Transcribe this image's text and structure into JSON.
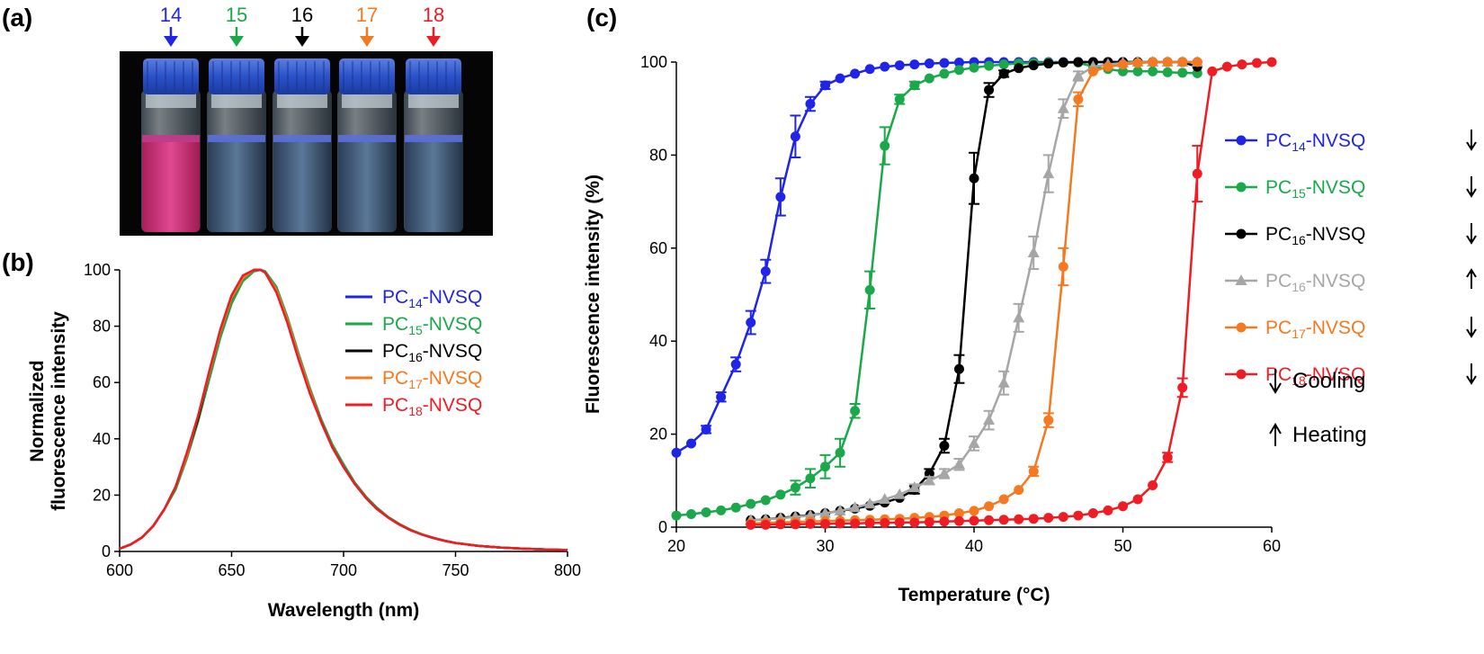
{
  "panels": {
    "a": {
      "label": "(a)",
      "vial_labels": [
        {
          "text": "14",
          "color": "#1f24e6"
        },
        {
          "text": "15",
          "color": "#1aa84a"
        },
        {
          "text": "16",
          "color": "#000000"
        },
        {
          "text": "17",
          "color": "#f47920"
        },
        {
          "text": "18",
          "color": "#ee1c24"
        }
      ]
    },
    "b": {
      "label": "(b)"
    },
    "c": {
      "label": "(c)",
      "notes": [
        {
          "arrow": "down",
          "text": "Cooling"
        },
        {
          "arrow": "up",
          "text": "Heating"
        }
      ]
    }
  },
  "chart_data": [
    {
      "id": "spectra",
      "type": "line",
      "xlabel": "Wavelength (nm)",
      "ylabel": [
        "Normalized",
        "fluorescence intensity"
      ],
      "xlim": [
        600,
        800
      ],
      "ylim": [
        0,
        100
      ],
      "xticks": [
        600,
        650,
        700,
        750,
        800
      ],
      "yticks": [
        0,
        20,
        40,
        60,
        80,
        100
      ],
      "grid": false,
      "legend_position": "right",
      "x": [
        600,
        605,
        610,
        615,
        620,
        625,
        630,
        635,
        640,
        645,
        650,
        655,
        660,
        663,
        665,
        670,
        675,
        680,
        685,
        690,
        695,
        700,
        705,
        710,
        715,
        720,
        725,
        730,
        735,
        740,
        745,
        750,
        760,
        770,
        780,
        790,
        800
      ],
      "series": [
        {
          "base": "PC",
          "sub": "14",
          "suffix": "-NVSQ",
          "color": "#1f24e6",
          "values": [
            1,
            2.5,
            5,
            9,
            15,
            23,
            34,
            47,
            62,
            77,
            89,
            97,
            100,
            100,
            99,
            93,
            82,
            69,
            57,
            46,
            37,
            30,
            24,
            19,
            15,
            12,
            9.5,
            7.5,
            6,
            4.8,
            3.8,
            3,
            2,
            1.4,
            1,
            0.7,
            0.5
          ]
        },
        {
          "base": "PC",
          "sub": "15",
          "suffix": "-NVSQ",
          "color": "#1aa84a",
          "values": [
            1,
            2.5,
            5,
            9,
            15,
            22,
            33,
            46,
            61,
            76,
            88,
            96,
            99.5,
            100,
            99.5,
            94,
            83,
            70,
            58,
            47,
            38,
            31,
            24.5,
            19.5,
            15.5,
            12.2,
            9.7,
            7.7,
            6.1,
            4.9,
            3.9,
            3,
            2,
            1.4,
            1,
            0.7,
            0.5
          ]
        },
        {
          "base": "PC",
          "sub": "16",
          "suffix": "-NVSQ",
          "color": "#000000",
          "values": [
            1,
            2.5,
            5,
            9,
            15,
            23,
            34,
            47,
            63,
            78,
            90,
            97,
            100,
            100,
            99,
            93,
            81,
            68,
            57,
            46,
            37,
            30,
            24,
            19,
            15,
            12,
            9.5,
            7.5,
            6,
            4.8,
            3.8,
            3,
            2,
            1.4,
            1,
            0.7,
            0.5
          ]
        },
        {
          "base": "PC",
          "sub": "17",
          "suffix": "-NVSQ",
          "color": "#f47920",
          "values": [
            1,
            2.5,
            5,
            9,
            15,
            23,
            34,
            48,
            63,
            78,
            90,
            97,
            100,
            100,
            99,
            93,
            82,
            69,
            57,
            46,
            37,
            30,
            24,
            19,
            15,
            12,
            9.5,
            7.5,
            6,
            4.8,
            3.8,
            3,
            2,
            1.4,
            1,
            0.7,
            0.5
          ]
        },
        {
          "base": "PC",
          "sub": "18",
          "suffix": "-NVSQ",
          "color": "#ee1c24",
          "values": [
            1,
            2.5,
            5,
            9,
            15,
            23,
            35,
            48,
            64,
            79,
            91,
            98,
            100,
            100,
            99,
            92,
            81,
            68,
            56,
            46,
            37,
            30,
            24,
            19,
            15,
            12,
            9.5,
            7.5,
            6,
            4.8,
            3.8,
            3,
            2,
            1.4,
            1,
            0.7,
            0.5
          ]
        }
      ]
    },
    {
      "id": "melting",
      "type": "scatter",
      "xlabel": "Temperature (°C)",
      "ylabel": "Fluorescence intensity (%)",
      "xlim": [
        20,
        60
      ],
      "ylim": [
        0,
        100
      ],
      "xticks": [
        20,
        30,
        40,
        50,
        60
      ],
      "yticks": [
        0,
        20,
        40,
        60,
        80,
        100
      ],
      "grid": false,
      "legend_position": "right",
      "series": [
        {
          "base": "PC",
          "sub": "14",
          "suffix": "-NVSQ",
          "color": "#1f24e6",
          "marker": "circle",
          "arrow": "down",
          "x": [
            20,
            21,
            22,
            23,
            24,
            25,
            26,
            27,
            28,
            29,
            30,
            31,
            32,
            33,
            34,
            35,
            36,
            37,
            38,
            39,
            40,
            41,
            42,
            43,
            44,
            45,
            46,
            47,
            48,
            49,
            50,
            51,
            52,
            53,
            54,
            55
          ],
          "y": [
            16,
            18,
            21,
            28,
            35,
            44,
            55,
            71,
            84,
            91,
            95,
            96.5,
            97.5,
            98.5,
            99,
            99.3,
            99.5,
            99.7,
            99.8,
            99.9,
            100,
            100,
            100,
            100,
            100,
            100,
            100,
            100,
            100,
            100,
            100,
            100,
            100,
            100,
            100,
            100
          ],
          "err": [
            0.5,
            0.5,
            0.8,
            1,
            1.5,
            2.5,
            2.5,
            4,
            4.5,
            1.5,
            0.8,
            0.5,
            0.4,
            0.3,
            0.3,
            0.2,
            0.2,
            0.2,
            0.1,
            0.1,
            0.1,
            0,
            0,
            0,
            0,
            0,
            0,
            0,
            0,
            0,
            0,
            0,
            0,
            0,
            0,
            0
          ]
        },
        {
          "base": "PC",
          "sub": "15",
          "suffix": "-NVSQ",
          "color": "#1aa84a",
          "marker": "circle",
          "arrow": "down",
          "x": [
            20,
            21,
            22,
            23,
            24,
            25,
            26,
            27,
            28,
            29,
            30,
            31,
            32,
            33,
            34,
            35,
            36,
            37,
            38,
            39,
            40,
            41,
            42,
            43,
            44,
            45,
            46,
            47,
            48,
            49,
            50,
            51,
            52,
            53,
            54,
            55
          ],
          "y": [
            2.5,
            2.8,
            3.2,
            3.6,
            4.2,
            5,
            5.8,
            7,
            8.5,
            10.5,
            13,
            16,
            25,
            51,
            82,
            92,
            95,
            96.5,
            97.5,
            98.3,
            98.8,
            99.2,
            99.5,
            99.7,
            99.8,
            99.9,
            99.9,
            99.9,
            99,
            98.5,
            98,
            98,
            98,
            97.8,
            97.7,
            97.6
          ],
          "err": [
            0.3,
            0.3,
            0.3,
            0.4,
            0.4,
            0.5,
            0.5,
            0.6,
            1.5,
            2,
            2.5,
            3,
            1.5,
            4,
            4,
            1,
            0.8,
            0.5,
            0.4,
            0.3,
            0.3,
            0.2,
            0.2,
            0.1,
            0.1,
            0.1,
            0.1,
            0.1,
            0.5,
            0.5,
            0.5,
            0.5,
            0.5,
            0.5,
            0.5,
            0.5
          ]
        },
        {
          "base": "PC",
          "sub": "16",
          "suffix": "-NVSQ",
          "color": "#000000",
          "marker": "circle",
          "arrow": "down",
          "x": [
            25,
            26,
            27,
            28,
            29,
            30,
            31,
            32,
            33,
            34,
            35,
            36,
            37,
            38,
            39,
            40,
            41,
            42,
            43,
            44,
            45,
            46,
            47,
            48,
            49,
            50,
            51,
            52,
            53,
            54,
            55
          ],
          "y": [
            1.5,
            1.7,
            2,
            2.3,
            2.6,
            3,
            3.5,
            4,
            4.6,
            5.3,
            6.3,
            8,
            11.5,
            17.5,
            34,
            75,
            94,
            97.5,
            98.7,
            99.3,
            99.7,
            99.9,
            100,
            100,
            100,
            100,
            100,
            100,
            100,
            100,
            99
          ],
          "err": [
            0.3,
            0.3,
            0.3,
            0.3,
            0.3,
            0.3,
            0.4,
            0.4,
            0.4,
            0.5,
            0.6,
            0.8,
            1,
            1.5,
            3,
            5.5,
            1.5,
            0.7,
            0.4,
            0.3,
            0.2,
            0.1,
            0.1,
            0.1,
            0.1,
            0.1,
            0.1,
            0.1,
            0.1,
            0.1,
            0.5
          ]
        },
        {
          "base": "PC",
          "sub": "16",
          "suffix": "-NVSQ",
          "color": "#a6a6a6",
          "marker": "triangle",
          "arrow": "up",
          "x": [
            25,
            26,
            27,
            28,
            29,
            30,
            31,
            32,
            33,
            34,
            35,
            36,
            37,
            38,
            39,
            40,
            41,
            42,
            43,
            44,
            45,
            46,
            47,
            48,
            49,
            50,
            51,
            52,
            53,
            54,
            55
          ],
          "y": [
            1.5,
            1.7,
            1.9,
            2.2,
            2.5,
            3,
            3.5,
            4.2,
            5,
            6,
            7,
            8.5,
            10,
            11.5,
            13.5,
            18,
            23,
            31,
            45,
            59,
            76,
            90,
            97,
            99,
            99.5,
            99.8,
            100,
            100,
            100,
            100,
            100
          ],
          "err": [
            0.2,
            0.2,
            0.2,
            0.2,
            0.3,
            0.3,
            0.3,
            0.4,
            0.4,
            0.5,
            0.6,
            0.7,
            0.8,
            1,
            1.2,
            1.5,
            2,
            2.5,
            3,
            3.5,
            4,
            2,
            1,
            0.4,
            0.2,
            0.1,
            0.1,
            0.1,
            0.1,
            0.1,
            0.1
          ]
        },
        {
          "base": "PC",
          "sub": "17",
          "suffix": "-NVSQ",
          "color": "#f47920",
          "marker": "circle",
          "arrow": "down",
          "x": [
            25,
            26,
            27,
            28,
            29,
            30,
            31,
            32,
            33,
            34,
            35,
            36,
            37,
            38,
            39,
            40,
            41,
            42,
            43,
            44,
            45,
            46,
            47,
            48,
            49,
            50,
            51,
            52,
            53,
            54,
            55
          ],
          "y": [
            0.8,
            0.9,
            1,
            1.1,
            1.2,
            1.3,
            1.4,
            1.5,
            1.6,
            1.7,
            1.8,
            2,
            2.2,
            2.5,
            3,
            3.5,
            4.5,
            6,
            8,
            12,
            23,
            56,
            92,
            98,
            99,
            99.5,
            99.8,
            100,
            100,
            100,
            100
          ],
          "err": [
            0.1,
            0.1,
            0.1,
            0.1,
            0.1,
            0.1,
            0.1,
            0.1,
            0.1,
            0.1,
            0.1,
            0.1,
            0.1,
            0.2,
            0.2,
            0.3,
            0.3,
            0.4,
            0.6,
            1,
            1.5,
            4,
            1.5,
            0.5,
            0.3,
            0.2,
            0.1,
            0.1,
            0.1,
            0.1,
            0.1
          ]
        },
        {
          "base": "PC",
          "sub": "18",
          "suffix": "-NVSQ",
          "color": "#ee1c24",
          "marker": "circle",
          "arrow": "down",
          "x": [
            25,
            26,
            27,
            28,
            29,
            30,
            31,
            32,
            33,
            34,
            35,
            36,
            37,
            38,
            39,
            40,
            41,
            42,
            43,
            44,
            45,
            46,
            47,
            48,
            49,
            50,
            51,
            52,
            53,
            54,
            55,
            56,
            57,
            58,
            59,
            60
          ],
          "y": [
            0.5,
            0.5,
            0.6,
            0.6,
            0.7,
            0.7,
            0.8,
            0.8,
            0.9,
            0.9,
            1,
            1,
            1.1,
            1.2,
            1.3,
            1.4,
            1.5,
            1.6,
            1.7,
            1.8,
            2,
            2.2,
            2.5,
            3,
            3.6,
            4.5,
            6,
            9,
            15,
            30,
            76,
            98,
            99,
            99.5,
            99.8,
            100
          ],
          "err": [
            0.1,
            0.1,
            0.1,
            0.1,
            0.1,
            0.1,
            0.1,
            0.1,
            0.1,
            0.1,
            0.1,
            0.1,
            0.1,
            0.1,
            0.1,
            0.1,
            0.1,
            0.1,
            0.1,
            0.1,
            0.1,
            0.1,
            0.2,
            0.2,
            0.2,
            0.3,
            0.4,
            0.6,
            1,
            2,
            6,
            0.5,
            0.2,
            0.1,
            0.1,
            0.1
          ]
        }
      ]
    }
  ]
}
